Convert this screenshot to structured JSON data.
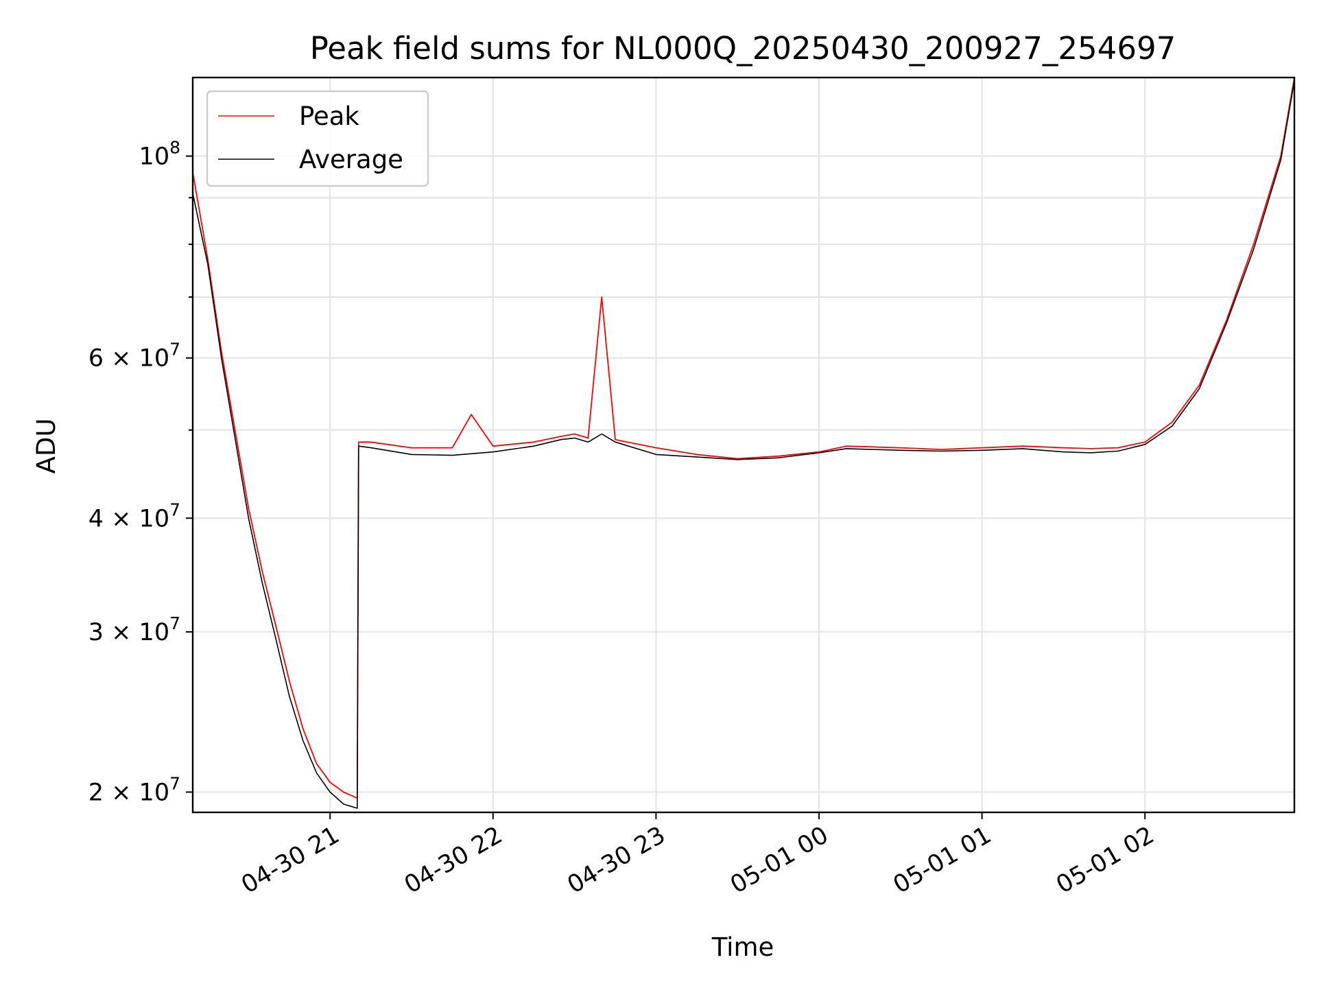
{
  "chart_data": {
    "type": "line",
    "title": "Peak field sums for NL000Q_20250430_200927_254697",
    "xlabel": "Time",
    "ylabel": "ADU",
    "yscale": "log",
    "ylim": [
      19000000,
      122000000
    ],
    "xlim": [
      "2025-04-30 20:09:27",
      "2025-05-01 02:55:00"
    ],
    "grid": true,
    "legend_position": "top-left",
    "x_ticks": [
      {
        "value": "2025-04-30 21:00",
        "label": "04-30 21"
      },
      {
        "value": "2025-04-30 22:00",
        "label": "04-30 22"
      },
      {
        "value": "2025-04-30 23:00",
        "label": "04-30 23"
      },
      {
        "value": "2025-05-01 00:00",
        "label": "05-01 00"
      },
      {
        "value": "2025-05-01 01:00",
        "label": "05-01 01"
      },
      {
        "value": "2025-05-01 02:00",
        "label": "05-01 02"
      }
    ],
    "y_major_ticks": [
      {
        "value": 100000000,
        "base": "10",
        "exp": "8",
        "mantissa": ""
      },
      {
        "value": 60000000,
        "base": "10",
        "exp": "7",
        "mantissa": "6"
      },
      {
        "value": 40000000,
        "base": "10",
        "exp": "7",
        "mantissa": "4"
      },
      {
        "value": 30000000,
        "base": "10",
        "exp": "7",
        "mantissa": "3"
      },
      {
        "value": 20000000,
        "base": "10",
        "exp": "7",
        "mantissa": "2"
      }
    ],
    "y_minor_ticks": [
      90000000,
      80000000,
      70000000,
      50000000
    ],
    "series": [
      {
        "name": "Peak",
        "color": "#ff0000",
        "x": [
          "2025-04-30 20:09:27",
          "2025-04-30 20:15",
          "2025-04-30 20:20",
          "2025-04-30 20:25",
          "2025-04-30 20:30",
          "2025-04-30 20:35",
          "2025-04-30 20:40",
          "2025-04-30 20:45",
          "2025-04-30 20:50",
          "2025-04-30 20:55",
          "2025-04-30 21:00",
          "2025-04-30 21:05",
          "2025-04-30 21:10",
          "2025-04-30 21:10:30",
          "2025-04-30 21:15",
          "2025-04-30 21:30",
          "2025-04-30 21:45",
          "2025-04-30 21:52",
          "2025-04-30 22:00",
          "2025-04-30 22:15",
          "2025-04-30 22:25",
          "2025-04-30 22:30",
          "2025-04-30 22:35",
          "2025-04-30 22:40",
          "2025-04-30 22:45",
          "2025-04-30 23:00",
          "2025-04-30 23:15",
          "2025-04-30 23:30",
          "2025-04-30 23:45",
          "2025-05-01 00:00",
          "2025-05-01 00:10",
          "2025-05-01 00:30",
          "2025-05-01 00:45",
          "2025-05-01 01:00",
          "2025-05-01 01:15",
          "2025-05-01 01:30",
          "2025-05-01 01:40",
          "2025-05-01 01:50",
          "2025-05-01 02:00",
          "2025-05-01 02:10",
          "2025-05-01 02:20",
          "2025-05-01 02:30",
          "2025-05-01 02:40",
          "2025-05-01 02:50",
          "2025-05-01 02:55"
        ],
        "y": [
          96000000,
          77000000,
          61000000,
          50000000,
          41000000,
          35000000,
          30500000,
          26500000,
          23500000,
          21500000,
          20500000,
          20000000,
          19700000,
          48500000,
          48500000,
          47800000,
          47800000,
          52000000,
          48000000,
          48500000,
          49200000,
          49500000,
          49000000,
          70000000,
          48800000,
          47800000,
          47000000,
          46500000,
          46800000,
          47300000,
          48000000,
          47800000,
          47600000,
          47800000,
          48000000,
          47800000,
          47700000,
          47800000,
          48500000,
          51000000,
          56000000,
          66000000,
          80000000,
          100000000,
          122000000
        ]
      },
      {
        "name": "Average",
        "color": "#000000",
        "x": [
          "2025-04-30 20:09:27",
          "2025-04-30 20:15",
          "2025-04-30 20:20",
          "2025-04-30 20:25",
          "2025-04-30 20:30",
          "2025-04-30 20:35",
          "2025-04-30 20:40",
          "2025-04-30 20:45",
          "2025-04-30 20:50",
          "2025-04-30 20:55",
          "2025-04-30 21:00",
          "2025-04-30 21:05",
          "2025-04-30 21:10",
          "2025-04-30 21:10:30",
          "2025-04-30 21:15",
          "2025-04-30 21:30",
          "2025-04-30 21:45",
          "2025-04-30 22:00",
          "2025-04-30 22:15",
          "2025-04-30 22:25",
          "2025-04-30 22:30",
          "2025-04-30 22:35",
          "2025-04-30 22:40",
          "2025-04-30 22:45",
          "2025-04-30 23:00",
          "2025-04-30 23:15",
          "2025-04-30 23:30",
          "2025-04-30 23:45",
          "2025-05-01 00:00",
          "2025-05-01 00:10",
          "2025-05-01 00:30",
          "2025-05-01 00:45",
          "2025-05-01 01:00",
          "2025-05-01 01:15",
          "2025-05-01 01:30",
          "2025-05-01 01:40",
          "2025-05-01 01:50",
          "2025-05-01 02:00",
          "2025-05-01 02:10",
          "2025-05-01 02:20",
          "2025-05-01 02:30",
          "2025-05-01 02:40",
          "2025-05-01 02:50",
          "2025-05-01 02:55"
        ],
        "y": [
          91000000,
          76000000,
          60000000,
          49000000,
          40000000,
          34000000,
          29500000,
          25500000,
          22800000,
          21000000,
          20000000,
          19400000,
          19200000,
          48000000,
          47800000,
          47000000,
          46900000,
          47300000,
          48000000,
          48800000,
          49000000,
          48500000,
          49500000,
          48500000,
          47000000,
          46700000,
          46400000,
          46600000,
          47200000,
          47700000,
          47500000,
          47400000,
          47500000,
          47700000,
          47300000,
          47200000,
          47400000,
          48200000,
          50500000,
          55500000,
          65500000,
          79000000,
          99000000,
          121000000
        ]
      }
    ]
  }
}
